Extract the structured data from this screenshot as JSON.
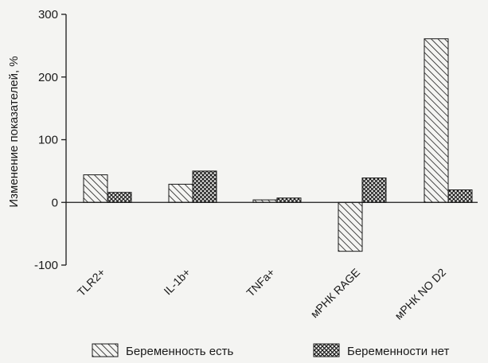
{
  "chart_data": {
    "type": "bar",
    "title": "",
    "xlabel": "",
    "ylabel": "Изменение показателей, %",
    "ylim": [
      -100,
      300
    ],
    "yticks": [
      -100,
      0,
      100,
      200,
      300
    ],
    "grid": false,
    "legend_position": "bottom",
    "categories": [
      "TLR2+",
      "IL-1b+",
      "TNFa+",
      "мРНК RAGE",
      "мРНК NO D2"
    ],
    "series": [
      {
        "name": "Беременность есть",
        "pattern": "diagonal-hatch",
        "values": [
          44,
          29,
          4,
          -78,
          261
        ]
      },
      {
        "name": "Беременности нет",
        "pattern": "crosshatch",
        "values": [
          16,
          50,
          7,
          39,
          20
        ]
      }
    ]
  },
  "colors": {
    "background": "#f4f4f2",
    "ink": "#1a1a1a"
  }
}
